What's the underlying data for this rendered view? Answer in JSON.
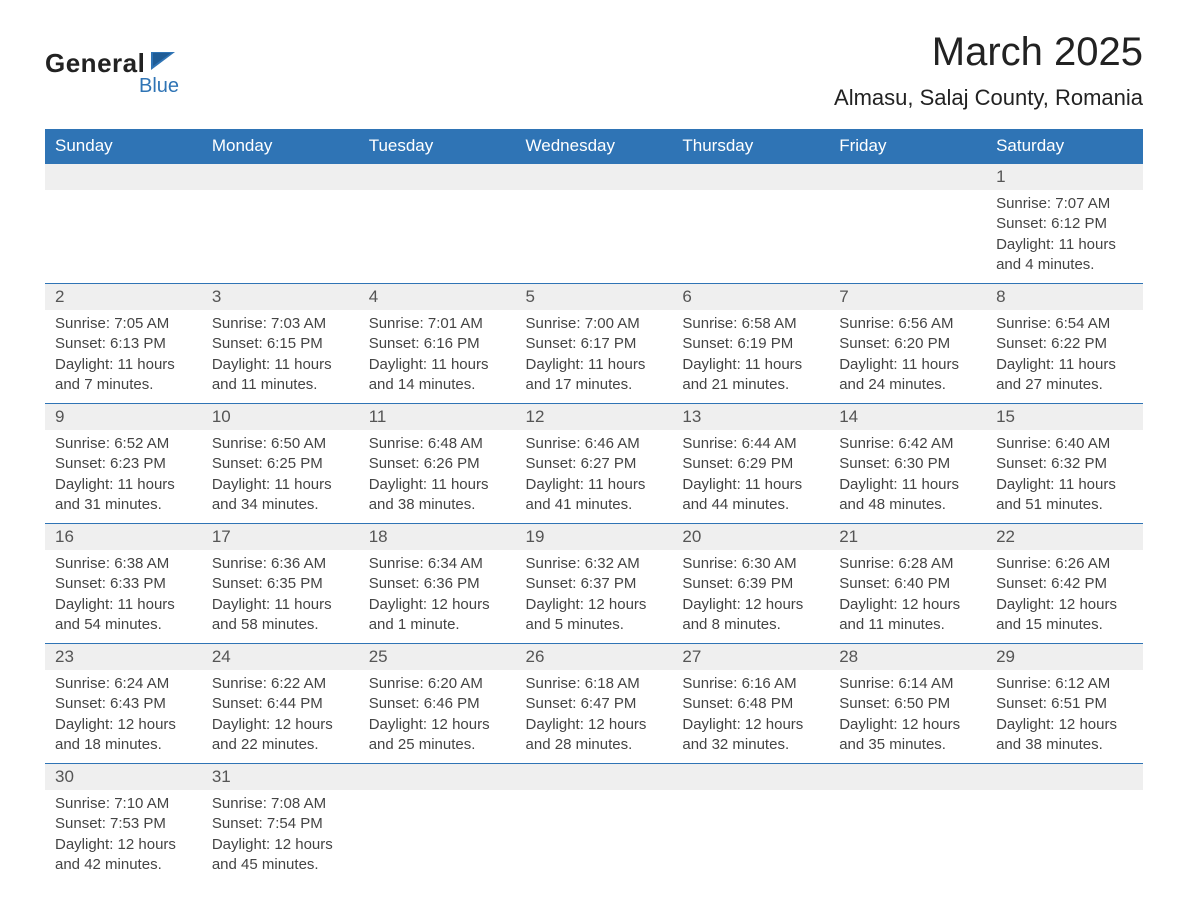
{
  "brand": {
    "part1": "General",
    "part2": "Blue"
  },
  "title": "March 2025",
  "location": "Almasu, Salaj County, Romania",
  "colors": {
    "header_bg": "#2f74b5",
    "header_text": "#ffffff",
    "daynum_bg": "#efefef",
    "row_border": "#2f74b5",
    "text": "#333333",
    "logo_accent": "#2f74b5"
  },
  "day_headers": [
    "Sunday",
    "Monday",
    "Tuesday",
    "Wednesday",
    "Thursday",
    "Friday",
    "Saturday"
  ],
  "weeks": [
    [
      {
        "n": "",
        "sunrise": "",
        "sunset": "",
        "daylight": ""
      },
      {
        "n": "",
        "sunrise": "",
        "sunset": "",
        "daylight": ""
      },
      {
        "n": "",
        "sunrise": "",
        "sunset": "",
        "daylight": ""
      },
      {
        "n": "",
        "sunrise": "",
        "sunset": "",
        "daylight": ""
      },
      {
        "n": "",
        "sunrise": "",
        "sunset": "",
        "daylight": ""
      },
      {
        "n": "",
        "sunrise": "",
        "sunset": "",
        "daylight": ""
      },
      {
        "n": "1",
        "sunrise": "Sunrise: 7:07 AM",
        "sunset": "Sunset: 6:12 PM",
        "daylight": "Daylight: 11 hours and 4 minutes."
      }
    ],
    [
      {
        "n": "2",
        "sunrise": "Sunrise: 7:05 AM",
        "sunset": "Sunset: 6:13 PM",
        "daylight": "Daylight: 11 hours and 7 minutes."
      },
      {
        "n": "3",
        "sunrise": "Sunrise: 7:03 AM",
        "sunset": "Sunset: 6:15 PM",
        "daylight": "Daylight: 11 hours and 11 minutes."
      },
      {
        "n": "4",
        "sunrise": "Sunrise: 7:01 AM",
        "sunset": "Sunset: 6:16 PM",
        "daylight": "Daylight: 11 hours and 14 minutes."
      },
      {
        "n": "5",
        "sunrise": "Sunrise: 7:00 AM",
        "sunset": "Sunset: 6:17 PM",
        "daylight": "Daylight: 11 hours and 17 minutes."
      },
      {
        "n": "6",
        "sunrise": "Sunrise: 6:58 AM",
        "sunset": "Sunset: 6:19 PM",
        "daylight": "Daylight: 11 hours and 21 minutes."
      },
      {
        "n": "7",
        "sunrise": "Sunrise: 6:56 AM",
        "sunset": "Sunset: 6:20 PM",
        "daylight": "Daylight: 11 hours and 24 minutes."
      },
      {
        "n": "8",
        "sunrise": "Sunrise: 6:54 AM",
        "sunset": "Sunset: 6:22 PM",
        "daylight": "Daylight: 11 hours and 27 minutes."
      }
    ],
    [
      {
        "n": "9",
        "sunrise": "Sunrise: 6:52 AM",
        "sunset": "Sunset: 6:23 PM",
        "daylight": "Daylight: 11 hours and 31 minutes."
      },
      {
        "n": "10",
        "sunrise": "Sunrise: 6:50 AM",
        "sunset": "Sunset: 6:25 PM",
        "daylight": "Daylight: 11 hours and 34 minutes."
      },
      {
        "n": "11",
        "sunrise": "Sunrise: 6:48 AM",
        "sunset": "Sunset: 6:26 PM",
        "daylight": "Daylight: 11 hours and 38 minutes."
      },
      {
        "n": "12",
        "sunrise": "Sunrise: 6:46 AM",
        "sunset": "Sunset: 6:27 PM",
        "daylight": "Daylight: 11 hours and 41 minutes."
      },
      {
        "n": "13",
        "sunrise": "Sunrise: 6:44 AM",
        "sunset": "Sunset: 6:29 PM",
        "daylight": "Daylight: 11 hours and 44 minutes."
      },
      {
        "n": "14",
        "sunrise": "Sunrise: 6:42 AM",
        "sunset": "Sunset: 6:30 PM",
        "daylight": "Daylight: 11 hours and 48 minutes."
      },
      {
        "n": "15",
        "sunrise": "Sunrise: 6:40 AM",
        "sunset": "Sunset: 6:32 PM",
        "daylight": "Daylight: 11 hours and 51 minutes."
      }
    ],
    [
      {
        "n": "16",
        "sunrise": "Sunrise: 6:38 AM",
        "sunset": "Sunset: 6:33 PM",
        "daylight": "Daylight: 11 hours and 54 minutes."
      },
      {
        "n": "17",
        "sunrise": "Sunrise: 6:36 AM",
        "sunset": "Sunset: 6:35 PM",
        "daylight": "Daylight: 11 hours and 58 minutes."
      },
      {
        "n": "18",
        "sunrise": "Sunrise: 6:34 AM",
        "sunset": "Sunset: 6:36 PM",
        "daylight": "Daylight: 12 hours and 1 minute."
      },
      {
        "n": "19",
        "sunrise": "Sunrise: 6:32 AM",
        "sunset": "Sunset: 6:37 PM",
        "daylight": "Daylight: 12 hours and 5 minutes."
      },
      {
        "n": "20",
        "sunrise": "Sunrise: 6:30 AM",
        "sunset": "Sunset: 6:39 PM",
        "daylight": "Daylight: 12 hours and 8 minutes."
      },
      {
        "n": "21",
        "sunrise": "Sunrise: 6:28 AM",
        "sunset": "Sunset: 6:40 PM",
        "daylight": "Daylight: 12 hours and 11 minutes."
      },
      {
        "n": "22",
        "sunrise": "Sunrise: 6:26 AM",
        "sunset": "Sunset: 6:42 PM",
        "daylight": "Daylight: 12 hours and 15 minutes."
      }
    ],
    [
      {
        "n": "23",
        "sunrise": "Sunrise: 6:24 AM",
        "sunset": "Sunset: 6:43 PM",
        "daylight": "Daylight: 12 hours and 18 minutes."
      },
      {
        "n": "24",
        "sunrise": "Sunrise: 6:22 AM",
        "sunset": "Sunset: 6:44 PM",
        "daylight": "Daylight: 12 hours and 22 minutes."
      },
      {
        "n": "25",
        "sunrise": "Sunrise: 6:20 AM",
        "sunset": "Sunset: 6:46 PM",
        "daylight": "Daylight: 12 hours and 25 minutes."
      },
      {
        "n": "26",
        "sunrise": "Sunrise: 6:18 AM",
        "sunset": "Sunset: 6:47 PM",
        "daylight": "Daylight: 12 hours and 28 minutes."
      },
      {
        "n": "27",
        "sunrise": "Sunrise: 6:16 AM",
        "sunset": "Sunset: 6:48 PM",
        "daylight": "Daylight: 12 hours and 32 minutes."
      },
      {
        "n": "28",
        "sunrise": "Sunrise: 6:14 AM",
        "sunset": "Sunset: 6:50 PM",
        "daylight": "Daylight: 12 hours and 35 minutes."
      },
      {
        "n": "29",
        "sunrise": "Sunrise: 6:12 AM",
        "sunset": "Sunset: 6:51 PM",
        "daylight": "Daylight: 12 hours and 38 minutes."
      }
    ],
    [
      {
        "n": "30",
        "sunrise": "Sunrise: 7:10 AM",
        "sunset": "Sunset: 7:53 PM",
        "daylight": "Daylight: 12 hours and 42 minutes."
      },
      {
        "n": "31",
        "sunrise": "Sunrise: 7:08 AM",
        "sunset": "Sunset: 7:54 PM",
        "daylight": "Daylight: 12 hours and 45 minutes."
      },
      {
        "n": "",
        "sunrise": "",
        "sunset": "",
        "daylight": ""
      },
      {
        "n": "",
        "sunrise": "",
        "sunset": "",
        "daylight": ""
      },
      {
        "n": "",
        "sunrise": "",
        "sunset": "",
        "daylight": ""
      },
      {
        "n": "",
        "sunrise": "",
        "sunset": "",
        "daylight": ""
      },
      {
        "n": "",
        "sunrise": "",
        "sunset": "",
        "daylight": ""
      }
    ]
  ]
}
